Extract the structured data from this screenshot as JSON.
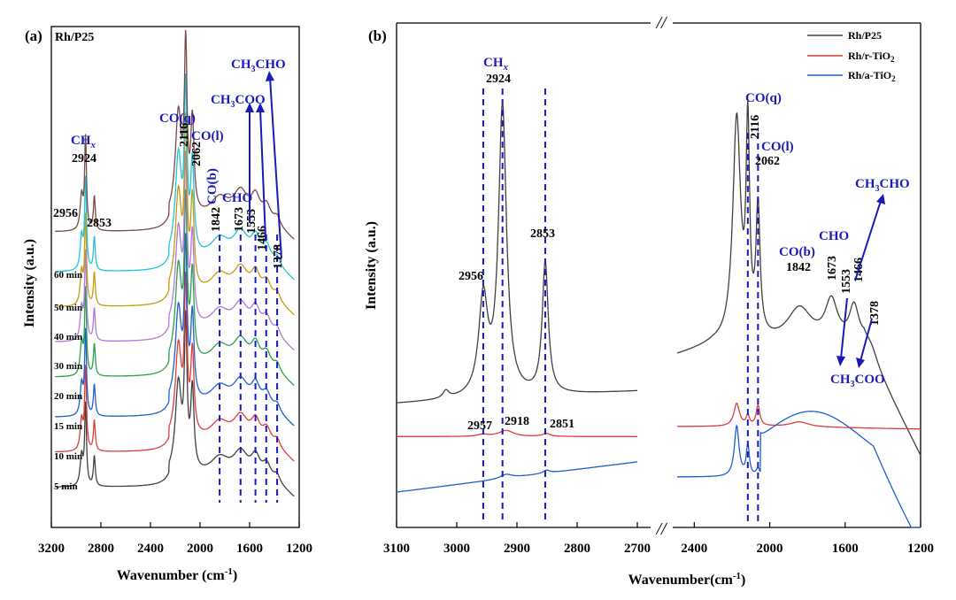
{
  "chart_data": [
    {
      "panel": "(a)",
      "type": "line",
      "title": "Rh/P25",
      "xlabel": "Wavenumber (cm-1)",
      "ylabel": "Intensity (a.u.)",
      "xlim": [
        3200,
        1200
      ],
      "x_ticks": [
        "3200",
        "2800",
        "2400",
        "2000",
        "1600",
        "1200"
      ],
      "x_tick_values": [
        3200,
        2800,
        2400,
        2000,
        1600,
        1200
      ],
      "series": [
        {
          "name": "5 min",
          "label": "5 min",
          "color": "#404040",
          "baseline": 0.08,
          "scale": 1.0
        },
        {
          "name": "10 min",
          "label": "10 min",
          "color": "#e03c3c",
          "baseline": 0.15,
          "scale": 1.02
        },
        {
          "name": "15 min",
          "label": "15 min",
          "color": "#1f5fcc",
          "baseline": 0.22,
          "scale": 1.04
        },
        {
          "name": "20 min",
          "label": "20 min",
          "color": "#2aa04a",
          "baseline": 0.3,
          "scale": 1.06
        },
        {
          "name": "30 min",
          "label": "30 min",
          "color": "#b07ad8",
          "baseline": 0.37,
          "scale": 1.08
        },
        {
          "name": "40 min",
          "label": "40 min",
          "color": "#c89a10",
          "baseline": 0.44,
          "scale": 1.1
        },
        {
          "name": "50 min",
          "label": "50 min",
          "color": "#20c4d8",
          "baseline": 0.51,
          "scale": 1.12
        },
        {
          "name": "60 min",
          "label": "60 min",
          "color": "#7a4848",
          "baseline": 0.59,
          "scale": 1.14
        }
      ],
      "peak_labels": [
        "2956",
        "2924",
        "2853",
        "2116",
        "2062",
        "1842",
        "1673",
        "1553",
        "1466",
        "1378"
      ],
      "band_labels": {
        "chx": "CHx",
        "coq": "CO(q)",
        "col": "CO(l)",
        "cob": "CO(b)",
        "cho": "CHO",
        "ch3coo": "CH3COO",
        "ch3cho": "CH3CHO"
      },
      "dashed_lines_at": [
        1842,
        1673,
        1553,
        1466,
        1378
      ]
    },
    {
      "panel": "(b)",
      "type": "line",
      "xlabel": "Wavenumber(cm-1)",
      "ylabel": "Intensity (a.u.)",
      "xlim_left": [
        3100,
        2700
      ],
      "xlim_right": [
        2500,
        1200
      ],
      "x_ticks_left": [
        "3100",
        "3000",
        "2900",
        "2800",
        "2700"
      ],
      "x_tick_values_left": [
        3100,
        3000,
        2900,
        2800,
        2700
      ],
      "x_ticks_right": [
        "2400",
        "2000",
        "1600",
        "1200"
      ],
      "x_tick_values_right": [
        2400,
        2000,
        1600,
        1200
      ],
      "axis_break": "//",
      "series": [
        {
          "name": "Rh/P25",
          "color": "#404040",
          "peaks_left": [
            2956,
            2924,
            2853
          ],
          "peaks_right": [
            2116,
            2062,
            1842,
            1673,
            1553,
            1466,
            1378
          ]
        },
        {
          "name": "Rh/r-TiO2",
          "color": "#e03c3c",
          "peaks_left": [
            2957,
            2918,
            2851
          ],
          "peaks_right": [
            2116,
            2062
          ]
        },
        {
          "name": "Rh/a-TiO2",
          "color": "#1f5fcc",
          "peaks_left": [
            2957,
            2918,
            2851
          ],
          "peaks_right": [
            2116,
            2062
          ]
        }
      ],
      "legend": [
        "Rh/P25",
        "Rh/r-TiO2",
        "Rh/a-TiO2"
      ],
      "peak_labels": [
        "2956",
        "2924",
        "2853",
        "2957",
        "2918",
        "2851",
        "2116",
        "2062",
        "1842",
        "1673",
        "1553",
        "1466",
        "1378"
      ],
      "band_labels": {
        "chx": "CHx",
        "coq": "CO(q)",
        "col": "CO(l)",
        "cob": "CO(b)",
        "cho": "CHO",
        "ch3coo": "CH3COO",
        "ch3cho": "CH3CHO"
      },
      "dashed_lines_at": [
        2956,
        2924,
        2853,
        2116,
        2062
      ]
    }
  ]
}
